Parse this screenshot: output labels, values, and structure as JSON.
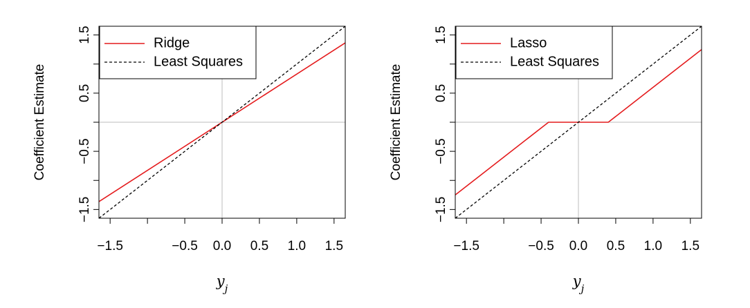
{
  "chart_data": [
    {
      "type": "line",
      "xlabel": "y",
      "xlabel_sub": "j",
      "ylabel": "Coefficient Estimate",
      "xlim": [
        -1.65,
        1.65
      ],
      "ylim": [
        -1.65,
        1.65
      ],
      "x_ticks": [
        -1.5,
        -1.0,
        -0.5,
        0.0,
        0.5,
        1.0,
        1.5
      ],
      "x_tick_labels": [
        "−1.5",
        "",
        "−0.5",
        "0.0",
        "0.5",
        "1.0",
        "1.5"
      ],
      "y_ticks": [
        -1.5,
        -1.0,
        -0.5,
        0.0,
        0.5,
        1.0,
        1.5
      ],
      "y_tick_labels": [
        "−1.5",
        "",
        "−0.5",
        "",
        "0.5",
        "",
        "1.5"
      ],
      "reference_lines": {
        "x": 0,
        "y": 0,
        "color": "#bebebe"
      },
      "legend_position": "top-left",
      "series": [
        {
          "name": "Ridge",
          "color": "#e41a1c",
          "style": "solid",
          "x": [
            -1.65,
            1.65
          ],
          "y": [
            -1.365,
            1.365
          ]
        },
        {
          "name": "Least Squares",
          "color": "#000000",
          "style": "dashed",
          "x": [
            -1.65,
            1.65
          ],
          "y": [
            -1.65,
            1.65
          ]
        }
      ]
    },
    {
      "type": "line",
      "xlabel": "y",
      "xlabel_sub": "j",
      "ylabel": "Coefficient Estimate",
      "xlim": [
        -1.65,
        1.65
      ],
      "ylim": [
        -1.65,
        1.65
      ],
      "x_ticks": [
        -1.5,
        -1.0,
        -0.5,
        0.0,
        0.5,
        1.0,
        1.5
      ],
      "x_tick_labels": [
        "−1.5",
        "",
        "−0.5",
        "0.0",
        "0.5",
        "1.0",
        "1.5"
      ],
      "y_ticks": [
        -1.5,
        -1.0,
        -0.5,
        0.0,
        0.5,
        1.0,
        1.5
      ],
      "y_tick_labels": [
        "−1.5",
        "",
        "−0.5",
        "",
        "0.5",
        "",
        "1.5"
      ],
      "reference_lines": {
        "x": 0,
        "y": 0,
        "color": "#bebebe"
      },
      "legend_position": "top-left",
      "series": [
        {
          "name": "Lasso",
          "color": "#e41a1c",
          "style": "solid",
          "x": [
            -1.65,
            -0.4,
            0.4,
            1.65
          ],
          "y": [
            -1.25,
            0,
            0,
            1.25
          ]
        },
        {
          "name": "Least Squares",
          "color": "#000000",
          "style": "dashed",
          "x": [
            -1.65,
            1.65
          ],
          "y": [
            -1.65,
            1.65
          ]
        }
      ]
    }
  ]
}
